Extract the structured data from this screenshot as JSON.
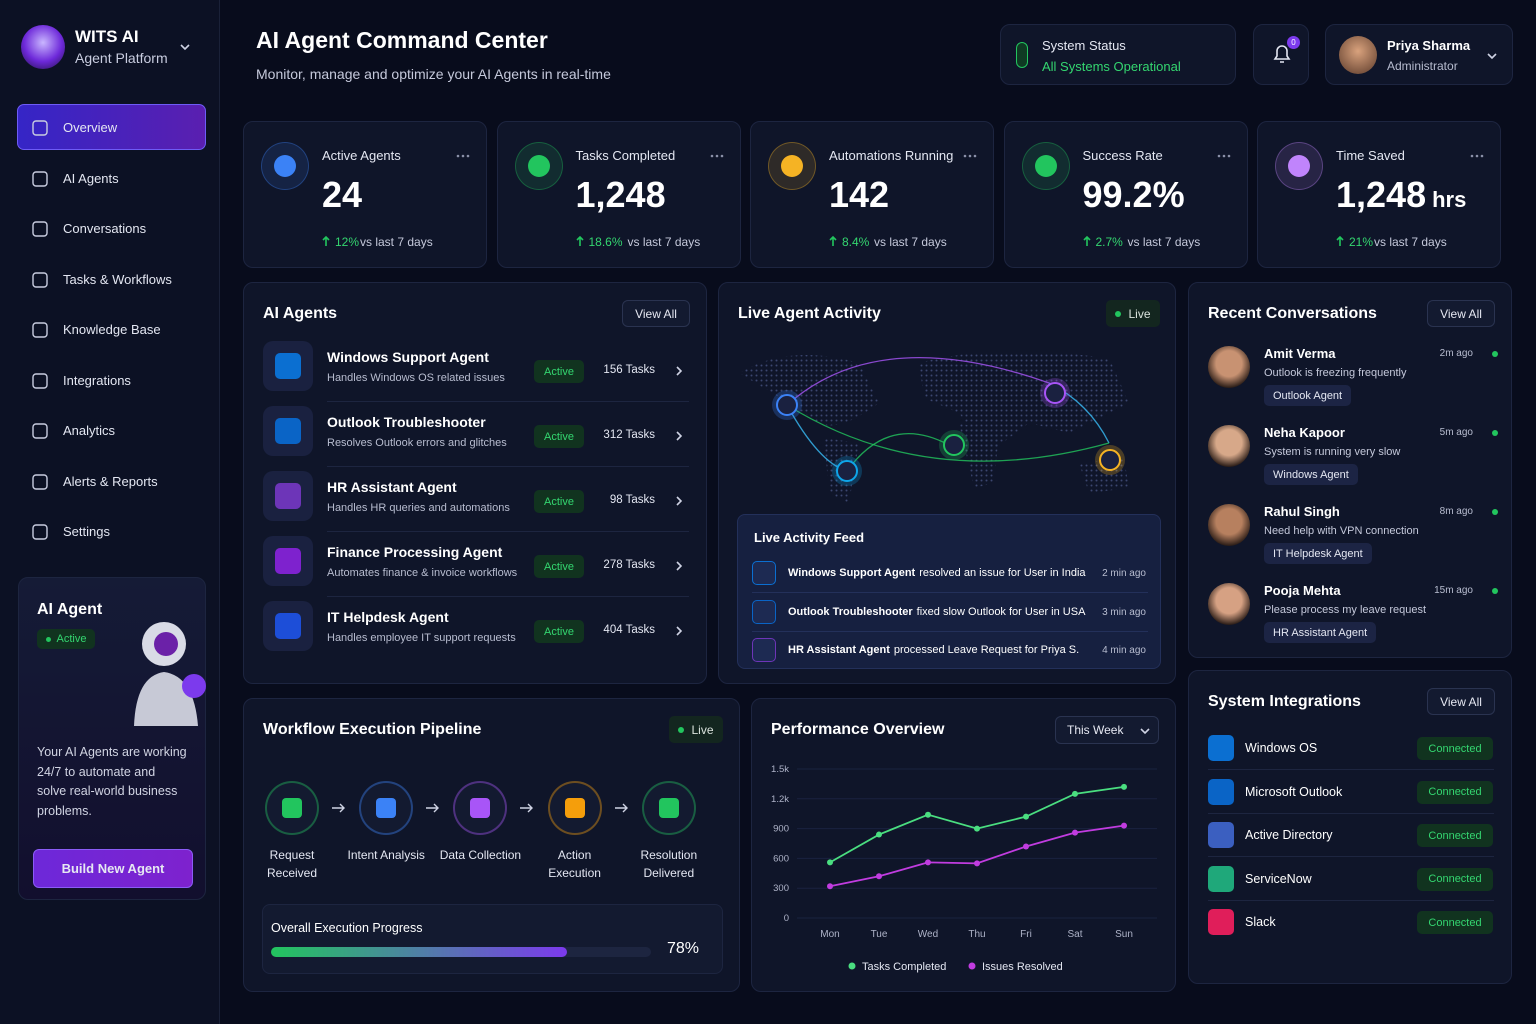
{
  "sidebar": {
    "brand": "WITS AI",
    "tagline": "Agent Platform",
    "nav": [
      "Overview",
      "AI Agents",
      "Conversations",
      "Tasks & Workflows",
      "Knowledge Base",
      "Integrations",
      "Analytics",
      "Alerts & Reports",
      "Settings"
    ],
    "promo": {
      "title": "AI Agent",
      "status": "Active",
      "text": "Your AI Agents are working 24/7 to automate and solve real-world business problems.",
      "button": "Build New Agent"
    }
  },
  "header": {
    "title": "AI Agent Command Center",
    "subtitle": "Monitor, manage and optimize your AI Agents in real-time",
    "status_label": "System Status",
    "status_value": "All Systems Operational",
    "notifications": "0",
    "user": {
      "name": "Priya Sharma",
      "role": "Administrator"
    }
  },
  "stats": [
    {
      "label": "Active Agents",
      "value": "24",
      "change": "12%",
      "note": "vs last 7 days"
    },
    {
      "label": "Tasks Completed",
      "value": "1,248",
      "change": "18.6%",
      "note": "vs last 7 days"
    },
    {
      "label": "Automations Running",
      "value": "142",
      "change": "8.4%",
      "note": "vs last 7 days"
    },
    {
      "label": "Success Rate",
      "value": "99.2%",
      "change": "2.7%",
      "note": "vs last 7 days"
    },
    {
      "label": "Time Saved",
      "value": "1,248",
      "unit": "hrs",
      "change": "21%",
      "note": "vs last 7 days"
    }
  ],
  "agents": {
    "title": "AI Agents",
    "action": "View All",
    "items": [
      {
        "name": "Windows Support Agent",
        "desc": "Handles Windows OS related issues",
        "status": "Active",
        "tasks": "156 Tasks"
      },
      {
        "name": "Outlook Troubleshooter",
        "desc": "Resolves Outlook errors and glitches",
        "status": "Active",
        "tasks": "312 Tasks"
      },
      {
        "name": "HR Assistant Agent",
        "desc": "Handles HR queries and automations",
        "status": "Active",
        "tasks": "98 Tasks"
      },
      {
        "name": "Finance Processing Agent",
        "desc": "Automates finance & invoice workflows",
        "status": "Active",
        "tasks": "278 Tasks"
      },
      {
        "name": "IT Helpdesk Agent",
        "desc": "Handles employee IT support requests",
        "status": "Active",
        "tasks": "404 Tasks"
      }
    ]
  },
  "live": {
    "title": "Live Agent Activity",
    "badge": "Live",
    "feed_title": "Live Activity Feed",
    "feed": [
      {
        "agent": "Windows Support Agent",
        "text": "resolved an issue for User in India",
        "time": "2 min ago"
      },
      {
        "agent": "Outlook Troubleshooter",
        "text": "fixed slow Outlook for User in USA",
        "time": "3 min ago"
      },
      {
        "agent": "HR Assistant Agent",
        "text": "processed Leave Request for Priya S.",
        "time": "4 min ago"
      }
    ]
  },
  "conversations": {
    "title": "Recent Conversations",
    "action": "View All",
    "items": [
      {
        "name": "Amit Verma",
        "message": "Outlook is freezing frequently",
        "agent": "Outlook Agent",
        "time": "2m ago"
      },
      {
        "name": "Neha Kapoor",
        "message": "System is running very slow",
        "agent": "Windows Agent",
        "time": "5m ago"
      },
      {
        "name": "Rahul Singh",
        "message": "Need help with VPN connection",
        "agent": "IT Helpdesk Agent",
        "time": "8m ago"
      },
      {
        "name": "Pooja Mehta",
        "message": "Please process my leave request",
        "agent": "HR Assistant Agent",
        "time": "15m ago"
      }
    ]
  },
  "integrations": {
    "title": "System Integrations",
    "action": "View All",
    "items": [
      {
        "name": "Windows OS",
        "status": "Connected"
      },
      {
        "name": "Microsoft Outlook",
        "status": "Connected"
      },
      {
        "name": "Active Directory",
        "status": "Connected"
      },
      {
        "name": "ServiceNow",
        "status": "Connected"
      },
      {
        "name": "Slack",
        "status": "Connected"
      }
    ]
  },
  "pipeline": {
    "title": "Workflow Execution Pipeline",
    "badge": "Live",
    "steps": [
      "Request Received",
      "Intent Analysis",
      "Data Collection",
      "Action Execution",
      "Resolution Delivered"
    ],
    "progress": {
      "label": "Overall Execution Progress",
      "value": 78,
      "value_label": "78%"
    }
  },
  "chart_data": {
    "type": "line",
    "title": "Performance Overview",
    "filter": "This Week",
    "categories": [
      "Mon",
      "Tue",
      "Wed",
      "Thu",
      "Fri",
      "Sat",
      "Sun"
    ],
    "series": [
      {
        "name": "Tasks Completed",
        "color": "#4ade80",
        "values": [
          560,
          840,
          1040,
          900,
          1020,
          1250,
          1320
        ]
      },
      {
        "name": "Issues Resolved",
        "color": "#c13ce0",
        "values": [
          320,
          420,
          560,
          550,
          720,
          860,
          930
        ]
      }
    ],
    "ylim": [
      0,
      1500
    ],
    "yticks": [
      0,
      300,
      600,
      900,
      {
        "value": 1200,
        "label": "1.2k"
      },
      {
        "value": 1500,
        "label": "1.5k"
      }
    ],
    "grid": true,
    "legend": "bottom"
  }
}
